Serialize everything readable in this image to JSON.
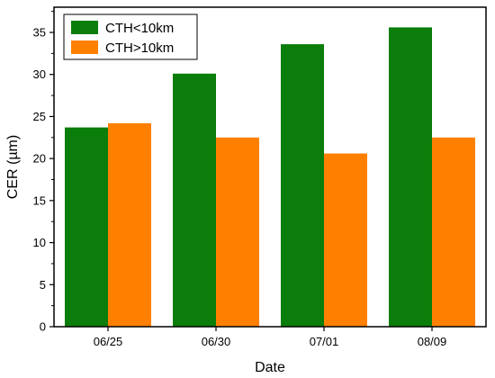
{
  "chart_data": {
    "type": "bar",
    "xlabel": "Date",
    "ylabel": "CER (µm)",
    "categories": [
      "06/25",
      "06/30",
      "07/01",
      "08/09"
    ],
    "series": [
      {
        "name": "CTH<10km",
        "color": "#0a7d0a",
        "values": [
          23.7,
          30.1,
          33.6,
          35.6
        ]
      },
      {
        "name": "CTH>10km",
        "color": "#ff8000",
        "values": [
          24.2,
          22.5,
          20.6,
          22.5
        ]
      }
    ],
    "ylim": [
      0,
      38
    ],
    "yticks": [
      0,
      5,
      10,
      15,
      20,
      25,
      30,
      35
    ],
    "grid": false,
    "legend_position": "top-left"
  }
}
